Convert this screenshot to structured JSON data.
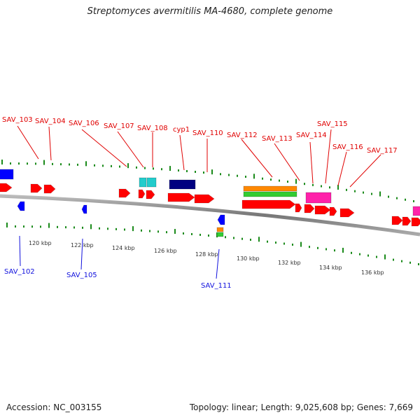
{
  "title": "Streptomyces avermitilis MA-4680, complete genome",
  "footer": {
    "accession": "Accession: NC_003155",
    "info": "Topology: linear; Length: 9,025,608 bp; Genes: 7,669"
  },
  "colors": {
    "forward_gene": "#ff0000",
    "reverse_gene": "#0000ff",
    "cds_navy": "#000080",
    "cyan": "#22cccc",
    "orange": "#ff8800",
    "green": "#33cc33",
    "magenta": "#ff22aa",
    "tick": "#1a8a1a",
    "backbone": "#888888",
    "label_forward": "#e00000",
    "label_reverse": "#1010dd"
  },
  "scale": {
    "tick_labels": [
      "120 kbp",
      "122 kbp",
      "124 kbp",
      "126 kbp",
      "128 kbp",
      "130 kbp",
      "132 kbp",
      "134 kbp",
      "136 kbp"
    ]
  },
  "labels_top": [
    "SAV_103",
    "SAV_104",
    "SAV_106",
    "SAV_107",
    "SAV_108",
    "cyp1",
    "SAV_110",
    "SAV_112",
    "SAV_113",
    "SAV_114",
    "SAV_115",
    "SAV_116",
    "SAV_117"
  ],
  "labels_bottom": [
    "SAV_102",
    "SAV_105",
    "SAV_111"
  ]
}
